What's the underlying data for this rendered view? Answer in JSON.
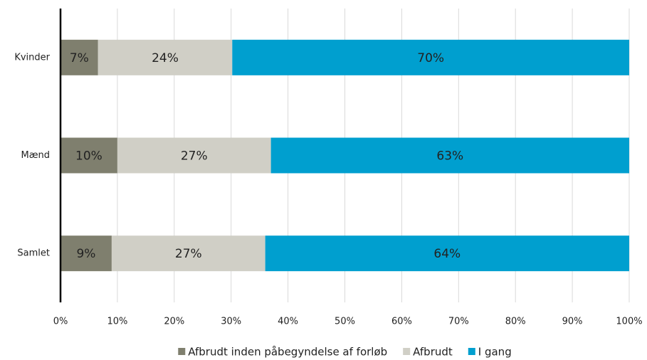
{
  "chart_data": {
    "type": "stacked_barh",
    "categories": [
      "Kvinder",
      "Mænd",
      "Samlet"
    ],
    "series": [
      {
        "name": "Afbrudt inden påbegyndelse af forløb",
        "color": "#7f7f6e",
        "values": [
          6.6,
          10,
          9
        ],
        "value_labels": [
          "7%",
          "10%",
          "9%"
        ]
      },
      {
        "name": "Afbrudt",
        "color": "#d0cfc6",
        "values": [
          23.6,
          27,
          27
        ],
        "value_labels": [
          "24%",
          "27%",
          "27%"
        ]
      },
      {
        "name": "I gang",
        "color": "#009fcf",
        "values": [
          69.8,
          63,
          64
        ],
        "value_labels": [
          "70%",
          "63%",
          "64%"
        ]
      }
    ],
    "xlim": [
      0,
      100
    ],
    "xticks": [
      {
        "value": 0,
        "label": "0%"
      },
      {
        "value": 10,
        "label": "10%"
      },
      {
        "value": 20,
        "label": "20%"
      },
      {
        "value": 30,
        "label": "30%"
      },
      {
        "value": 40,
        "label": "40%"
      },
      {
        "value": 50,
        "label": "50%"
      },
      {
        "value": 60,
        "label": "60%"
      },
      {
        "value": 70,
        "label": "70%"
      },
      {
        "value": 80,
        "label": "80%"
      },
      {
        "value": 90,
        "label": "90%"
      },
      {
        "value": 100,
        "label": "100%"
      }
    ],
    "grid": true,
    "legend": "bottom"
  }
}
